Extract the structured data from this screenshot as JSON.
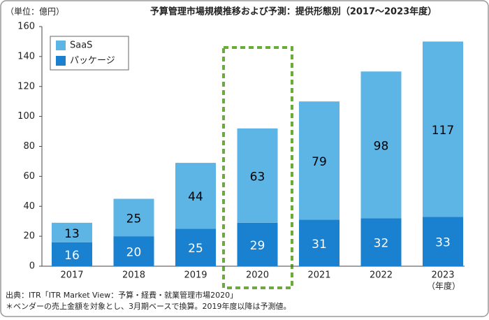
{
  "chart_data": {
    "type": "stacked_bar",
    "title": "予算管理市場規模推移および予測：提供形態別（2017～2023年度）",
    "y_unit": "（単位：億円）",
    "x_unit": "（年度）",
    "categories": [
      "2017",
      "2018",
      "2019",
      "2020",
      "2021",
      "2022",
      "2023"
    ],
    "series": [
      {
        "name": "パッケージ",
        "color": "#1a80d0",
        "label_color": "#ffffff",
        "values": [
          16,
          20,
          25,
          29,
          31,
          32,
          33
        ]
      },
      {
        "name": "SaaS",
        "color": "#5db5e6",
        "label_color": "#000000",
        "values": [
          13,
          25,
          44,
          63,
          79,
          98,
          117
        ]
      }
    ],
    "ylim": [
      0,
      160
    ],
    "yticks": [
      0,
      20,
      40,
      60,
      80,
      100,
      120,
      140,
      160
    ],
    "notes": [
      "出典：ITR「ITR Market View：予算・経費・就業管理市場2020」",
      "＊ベンダーの売上金額を対象とし、3月期ベースで換算。2019年度以降は予測値。"
    ]
  }
}
